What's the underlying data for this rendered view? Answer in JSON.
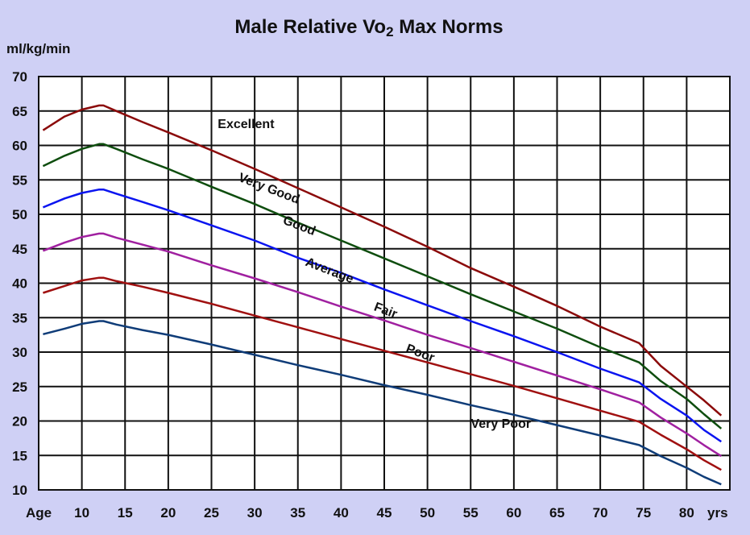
{
  "chart_data": {
    "type": "line",
    "title": "Male Relative Vo",
    "title_subscript": "2",
    "title_suffix": "Max Norms",
    "ylabel": "ml/kg/min",
    "xlabel_left": "Age",
    "xlabel_right": "yrs",
    "xlim": [
      5,
      85
    ],
    "ylim": [
      10,
      70
    ],
    "xticks": [
      10,
      15,
      20,
      25,
      30,
      35,
      40,
      45,
      50,
      55,
      60,
      65,
      70,
      75,
      80
    ],
    "yticks": [
      10,
      15,
      20,
      25,
      30,
      35,
      40,
      45,
      50,
      55,
      60,
      65,
      70
    ],
    "x": [
      5.5,
      8,
      10,
      12,
      12.5,
      14,
      17,
      20,
      25,
      30,
      35,
      40,
      45,
      50,
      55,
      60,
      65,
      70,
      74.5,
      77,
      80,
      82,
      84
    ],
    "series": [
      {
        "name": "Excellent",
        "color": "#8B0A0A",
        "label_pos": [
          29,
          62.5
        ],
        "label_angle": 0,
        "values": [
          62.2,
          64.2,
          65.2,
          65.8,
          65.8,
          65,
          63.4,
          61.9,
          59.3,
          56.6,
          53.8,
          51,
          48.2,
          45.3,
          42.2,
          39.5,
          36.7,
          33.7,
          31.3,
          28,
          25,
          23,
          20.8
        ]
      },
      {
        "name": "Very Good",
        "color": "#0E4D0E",
        "label_pos": [
          31.5,
          53.2
        ],
        "label_angle": 21,
        "values": [
          57,
          58.5,
          59.5,
          60.2,
          60.2,
          59.5,
          58,
          56.6,
          54,
          51.5,
          48.8,
          46.2,
          43.6,
          41,
          38.4,
          35.9,
          33.4,
          30.7,
          28.5,
          25.8,
          23.2,
          21,
          18.9
        ]
      },
      {
        "name": "Good",
        "color": "#0A14F0",
        "label_pos": [
          35,
          47.8
        ],
        "label_angle": 21,
        "values": [
          51,
          52.3,
          53.1,
          53.6,
          53.6,
          53,
          51.8,
          50.6,
          48.4,
          46.2,
          43.7,
          41.5,
          39.1,
          36.8,
          34.5,
          32.3,
          30,
          27.6,
          25.6,
          23.2,
          20.8,
          18.7,
          17
        ]
      },
      {
        "name": "Average",
        "color": "#A020A0",
        "label_pos": [
          38.5,
          41.3
        ],
        "label_angle": 21,
        "values": [
          44.7,
          45.9,
          46.7,
          47.2,
          47.2,
          46.6,
          45.6,
          44.6,
          42.6,
          40.7,
          38.7,
          36.6,
          34.6,
          32.5,
          30.6,
          28.6,
          26.6,
          24.6,
          22.7,
          20.5,
          18.2,
          16.5,
          14.9
        ]
      },
      {
        "name": "Fair",
        "color": "#A01010",
        "label_pos": [
          45,
          35.5
        ],
        "label_angle": 21,
        "values": [
          38.6,
          39.6,
          40.4,
          40.8,
          40.8,
          40.3,
          39.5,
          38.6,
          37,
          35.3,
          33.6,
          31.9,
          30.2,
          28.5,
          26.8,
          25.1,
          23.3,
          21.5,
          19.9,
          18,
          15.9,
          14.3,
          12.9
        ]
      },
      {
        "name": "Poor",
        "color": "#0F3C78",
        "label_pos": [
          49,
          29.3
        ],
        "label_angle": 21,
        "values": [
          32.6,
          33.4,
          34.1,
          34.5,
          34.5,
          34,
          33.2,
          32.5,
          31.1,
          29.6,
          28.1,
          26.7,
          25.2,
          23.8,
          22.3,
          20.9,
          19.4,
          17.9,
          16.5,
          14.9,
          13.2,
          11.9,
          10.8
        ]
      }
    ],
    "extra_labels": [
      {
        "text": "Very Poor",
        "pos": [
          58.5,
          19
        ],
        "angle": 0
      }
    ]
  }
}
